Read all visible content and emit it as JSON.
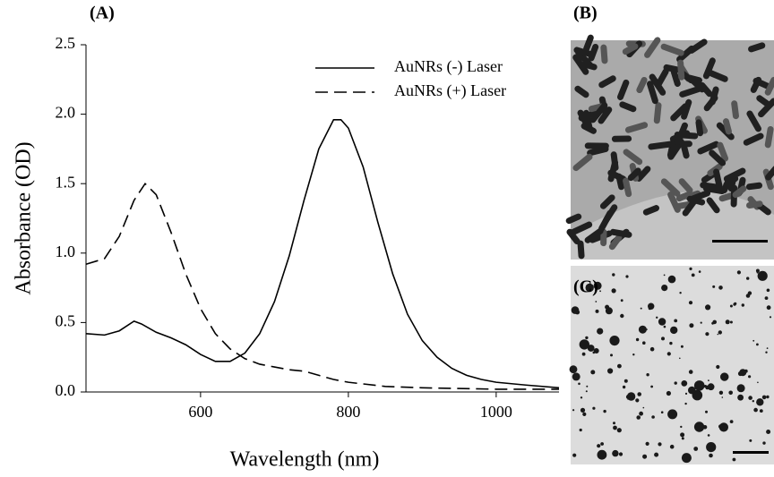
{
  "chart_data": {
    "type": "line",
    "panel_labels": [
      "(A)",
      "(B)",
      "(C)"
    ],
    "x_label": "Wavelength (nm)",
    "y_label": "Absorbance (OD)",
    "xlim": [
      445,
      1085
    ],
    "ylim": [
      0,
      2.5
    ],
    "xticks": [
      600,
      800,
      1000
    ],
    "yticks": [
      {
        "value": 0,
        "label": "0.0"
      },
      {
        "value": 0.5,
        "label": "0.5"
      },
      {
        "value": 1,
        "label": "1.0"
      },
      {
        "value": 1.5,
        "label": "1.5"
      },
      {
        "value": 2,
        "label": "2.0"
      },
      {
        "value": 2.5,
        "label": "2.5"
      }
    ],
    "legend": "upper right",
    "series": [
      {
        "name": "AuNRs (-)  Laser",
        "color": "#000000",
        "dash": "solid",
        "x": [
          445,
          470,
          490,
          510,
          520,
          540,
          560,
          580,
          600,
          620,
          640,
          660,
          680,
          700,
          720,
          740,
          760,
          780,
          790,
          800,
          820,
          840,
          860,
          880,
          900,
          920,
          940,
          960,
          980,
          1000,
          1040,
          1085
        ],
        "values": [
          0.42,
          0.41,
          0.44,
          0.51,
          0.49,
          0.43,
          0.39,
          0.34,
          0.27,
          0.22,
          0.22,
          0.28,
          0.42,
          0.65,
          0.98,
          1.38,
          1.75,
          1.96,
          1.96,
          1.9,
          1.62,
          1.22,
          0.85,
          0.56,
          0.37,
          0.25,
          0.17,
          0.12,
          0.09,
          0.07,
          0.05,
          0.03
        ]
      },
      {
        "name": "AuNRs (+) Laser",
        "color": "#000000",
        "dash": "dashed",
        "x": [
          445,
          470,
          490,
          510,
          525,
          540,
          560,
          580,
          600,
          620,
          640,
          660,
          680,
          700,
          720,
          740,
          760,
          780,
          800,
          850,
          900,
          1000,
          1085
        ],
        "values": [
          0.92,
          0.96,
          1.12,
          1.38,
          1.5,
          1.42,
          1.15,
          0.85,
          0.6,
          0.42,
          0.31,
          0.24,
          0.2,
          0.18,
          0.16,
          0.15,
          0.12,
          0.09,
          0.07,
          0.04,
          0.03,
          0.02,
          0.02
        ]
      }
    ]
  }
}
